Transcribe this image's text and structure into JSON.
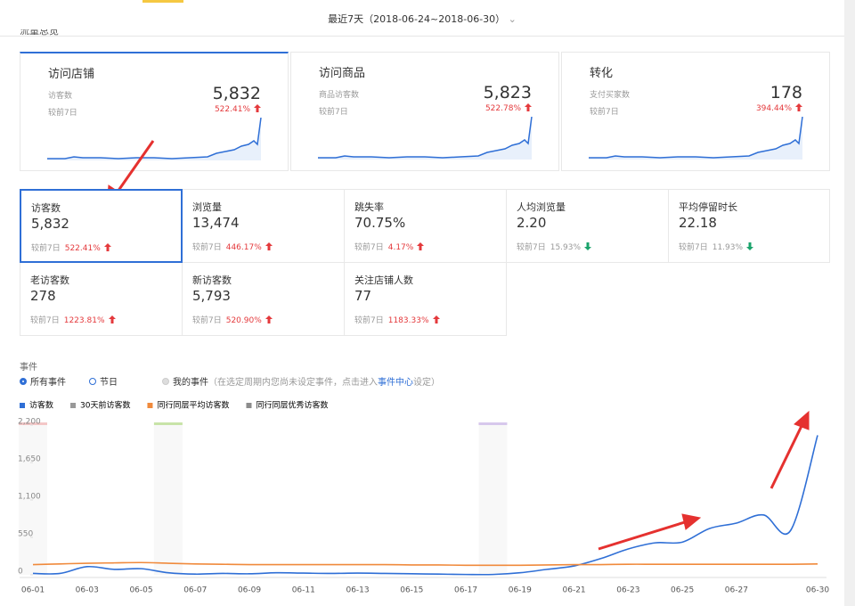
{
  "header": {
    "date_range": "最近7天（2018-06-24~2018-06-30）",
    "section_title": "流量总览"
  },
  "cards": [
    {
      "title": "访问店铺",
      "metric": "访客数",
      "compare": "较前7日",
      "value": "5,832",
      "change": "522.41%"
    },
    {
      "title": "访问商品",
      "metric": "商品访客数",
      "compare": "较前7日",
      "value": "5,823",
      "change": "522.78%"
    },
    {
      "title": "转化",
      "metric": "支付买家数",
      "compare": "较前7日",
      "value": "178",
      "change": "394.44%"
    }
  ],
  "metrics": [
    {
      "label": "访客数",
      "value": "5,832",
      "compare": "较前7日",
      "change": "522.41%",
      "trend": "up"
    },
    {
      "label": "浏览量",
      "value": "13,474",
      "compare": "较前7日",
      "change": "446.17%",
      "trend": "up"
    },
    {
      "label": "跳失率",
      "value": "70.75%",
      "compare": "较前7日",
      "change": "4.17%",
      "trend": "up"
    },
    {
      "label": "人均浏览量",
      "value": "2.20",
      "compare": "较前7日",
      "change": "15.93%",
      "trend": "down"
    },
    {
      "label": "平均停留时长",
      "value": "22.18",
      "compare": "较前7日",
      "change": "11.93%",
      "trend": "down"
    },
    {
      "label": "老访客数",
      "value": "278",
      "compare": "较前7日",
      "change": "1223.81%",
      "trend": "up"
    },
    {
      "label": "新访客数",
      "value": "5,793",
      "compare": "较前7日",
      "change": "520.90%",
      "trend": "up"
    },
    {
      "label": "关注店铺人数",
      "value": "77",
      "compare": "较前7日",
      "change": "1183.33%",
      "trend": "up"
    }
  ],
  "events": {
    "title": "事件",
    "options": [
      "所有事件",
      "节日",
      "我的事件"
    ],
    "hint_before": "（在选定周期内您尚未设定事件，点击进入",
    "hint_link": "事件中心",
    "hint_after": "设定）"
  },
  "chart_data": {
    "type": "line",
    "categories": [
      "06-01",
      null,
      "06-03",
      null,
      "06-05",
      null,
      "06-07",
      null,
      "06-09",
      null,
      "06-11",
      null,
      "06-13",
      null,
      "06-15",
      null,
      "06-17",
      null,
      "06-19",
      null,
      "06-21",
      null,
      "06-23",
      null,
      "06-25",
      null,
      "06-27",
      null,
      null,
      "06-30"
    ],
    "series": [
      {
        "name": "访客数",
        "color": "#2f6fd6",
        "values": [
          20,
          20,
          120,
          80,
          90,
          30,
          10,
          20,
          15,
          30,
          25,
          20,
          25,
          20,
          15,
          10,
          5,
          5,
          30,
          80,
          130,
          240,
          380,
          470,
          480,
          680,
          760,
          880,
          650,
          2050
        ]
      },
      {
        "name": "30天前访客数",
        "color": "#999999"
      },
      {
        "name": "同行同层平均访客数",
        "color": "#f08a3c",
        "values": [
          150,
          160,
          170,
          175,
          180,
          170,
          160,
          155,
          150,
          150,
          150,
          150,
          150,
          150,
          145,
          145,
          140,
          140,
          140,
          145,
          150,
          150,
          155,
          155,
          155,
          155,
          155,
          155,
          155,
          160
        ]
      },
      {
        "name": "同行同层优秀访客数",
        "color": "#8c8c8c"
      }
    ],
    "ylim": [
      0,
      2200
    ],
    "yticks": [
      0,
      550,
      {
        "value": 1100,
        "label": "1,100"
      },
      {
        "value": 1650,
        "label": "1,650"
      },
      {
        "value": 2200,
        "label": "2,200"
      }
    ],
    "grid": false
  }
}
